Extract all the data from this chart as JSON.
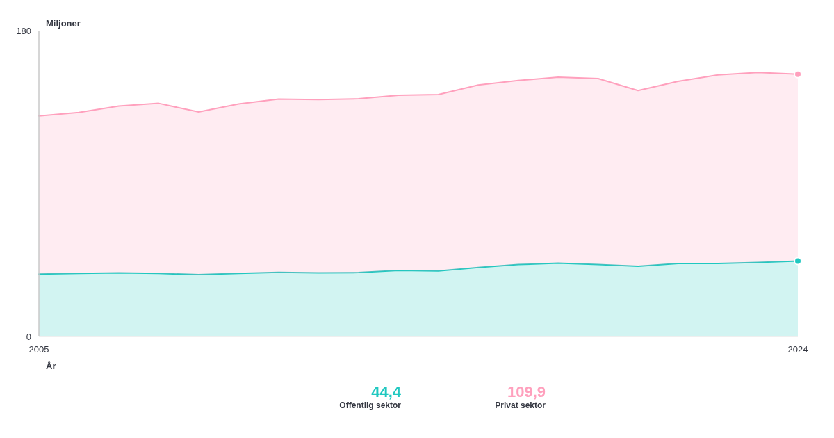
{
  "chart_data": [
    {
      "type": "area",
      "stacked": true,
      "xlabel": "År",
      "ylabel": "Miljoner",
      "x": [
        2005,
        2006,
        2007,
        2008,
        2009,
        2010,
        2011,
        2012,
        2013,
        2014,
        2015,
        2016,
        2017,
        2018,
        2019,
        2020,
        2021,
        2022,
        2023,
        2024
      ],
      "xlim": [
        2005,
        2024
      ],
      "xticks": [
        2005,
        2024
      ],
      "ylim": [
        0,
        180
      ],
      "yticks": [
        0,
        180
      ],
      "series": [
        {
          "color": "#1fc8c0",
          "values": [
            36.7,
            37.1,
            37.4,
            37.1,
            36.4,
            37.1,
            37.7,
            37.4,
            37.6,
            38.9,
            38.6,
            40.6,
            42.3,
            43.2,
            42.3,
            41.3,
            43.0,
            43.0,
            43.6,
            44.4
          ]
        },
        {
          "color": "#ffa0bd",
          "values": [
            93.1,
            94.7,
            98.2,
            100.1,
            95.7,
            99.7,
            102.0,
            102.0,
            102.3,
            103.1,
            103.8,
            107.4,
            108.3,
            109.4,
            109.5,
            103.4,
            107.1,
            110.9,
            111.8,
            109.9
          ]
        }
      ]
    },
    {
      "type": "other",
      "categories": [
        "Offentlig sektor",
        "Privat sektor"
      ],
      "value_labels": [
        "44,4",
        "109,9"
      ],
      "colors": [
        "#1fc8c0",
        "#ffa0bd"
      ]
    }
  ]
}
